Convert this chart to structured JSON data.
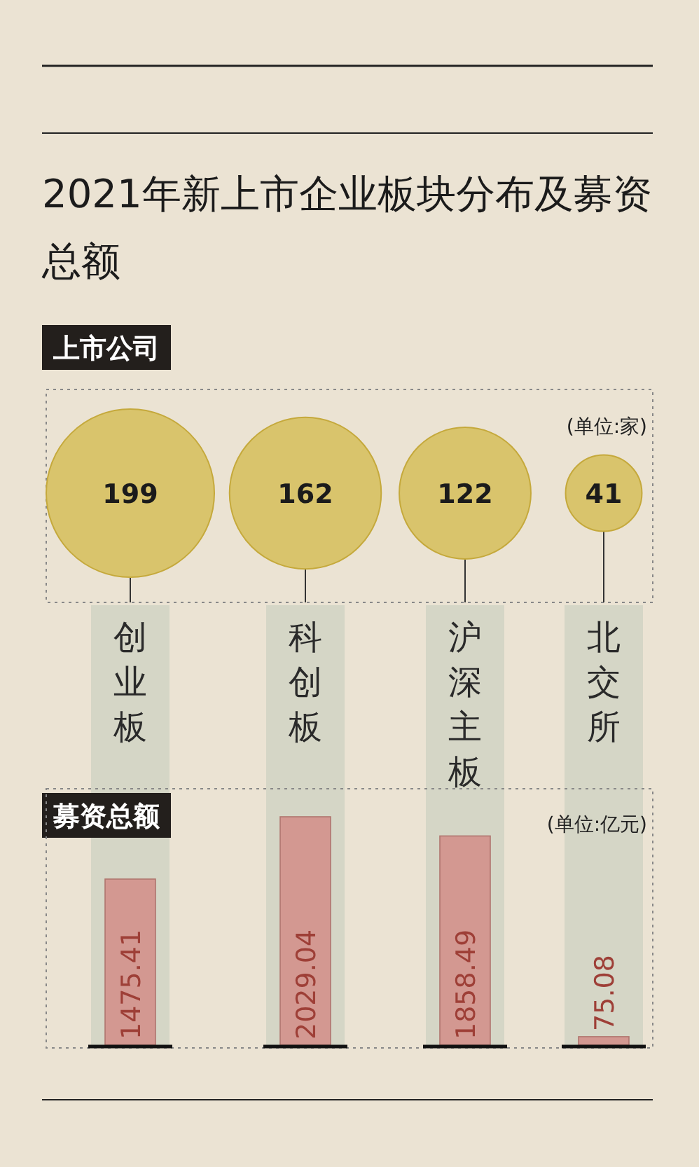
{
  "chart_data": [
    {
      "type": "other",
      "title": "2021年新上市企业板块分布及募资总额",
      "subtitle": "上市公司",
      "annotations": [
        "(单位:家)"
      ],
      "categories": [
        "创业板",
        "科创板",
        "沪深主板",
        "北交所"
      ],
      "values": [
        199,
        162,
        122,
        41
      ],
      "color": "#d9c46c",
      "data_labels": true
    },
    {
      "type": "bar",
      "title": "募资总额",
      "annotations": [
        "(单位:亿元)"
      ],
      "categories": [
        "创业板",
        "科创板",
        "沪深主板",
        "北交所"
      ],
      "values": [
        1475.41,
        2029.04,
        1858.49,
        75.08
      ],
      "color": "#d39891",
      "data_labels": true,
      "tick_labels": false
    }
  ]
}
